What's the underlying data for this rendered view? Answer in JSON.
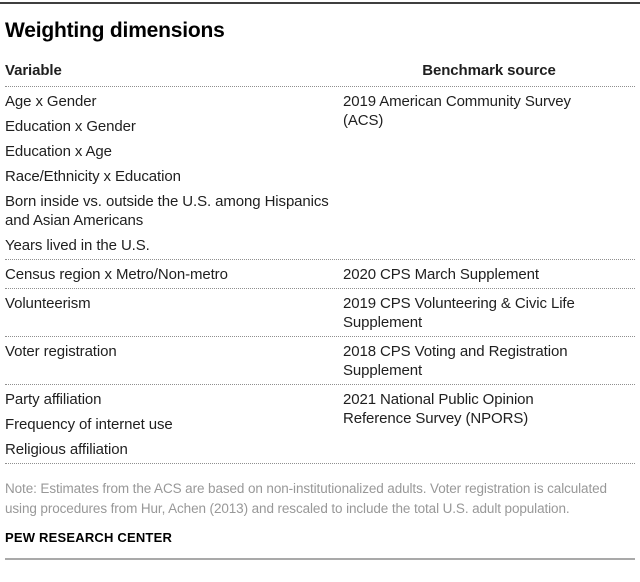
{
  "title": "Weighting dimensions",
  "chart_data": {
    "type": "table",
    "title": "Weighting dimensions",
    "columns": [
      "Variable",
      "Benchmark source"
    ],
    "rows": [
      {
        "variables": [
          "Age x Gender",
          "Education x Gender",
          "Education x Age",
          "Race/Ethnicity x Education",
          "Born inside vs. outside the U.S. among Hispanics and Asian Americans",
          "Years lived in the U.S."
        ],
        "benchmark": "2019 American Community Survey (ACS)"
      },
      {
        "variables": [
          "Census region x Metro/Non-metro"
        ],
        "benchmark": "2020 CPS March Supplement"
      },
      {
        "variables": [
          "Volunteerism"
        ],
        "benchmark": "2019 CPS Volunteering & Civic Life Supplement"
      },
      {
        "variables": [
          "Voter registration"
        ],
        "benchmark": "2018 CPS Voting and Registration Supplement"
      },
      {
        "variables": [
          "Party affiliation",
          "Frequency of internet use",
          "Religious affiliation"
        ],
        "benchmark": "2021 National Public Opinion Reference Survey (NPORS)"
      }
    ]
  },
  "note": "Note: Estimates from the ACS are based on non-institutionalized adults. Voter registration is calculated using procedures from Hur, Achen (2013) and rescaled to include the total U.S. adult population.",
  "source_label": "PEW RESEARCH CENTER",
  "colors": {
    "text": "#1f1f1f",
    "title": "#000000",
    "note": "#989898",
    "divider": "#8f8f8f",
    "top_border": "#3f3f3f",
    "bottom_border": "#a9a9a9",
    "background": "#ffffff"
  }
}
